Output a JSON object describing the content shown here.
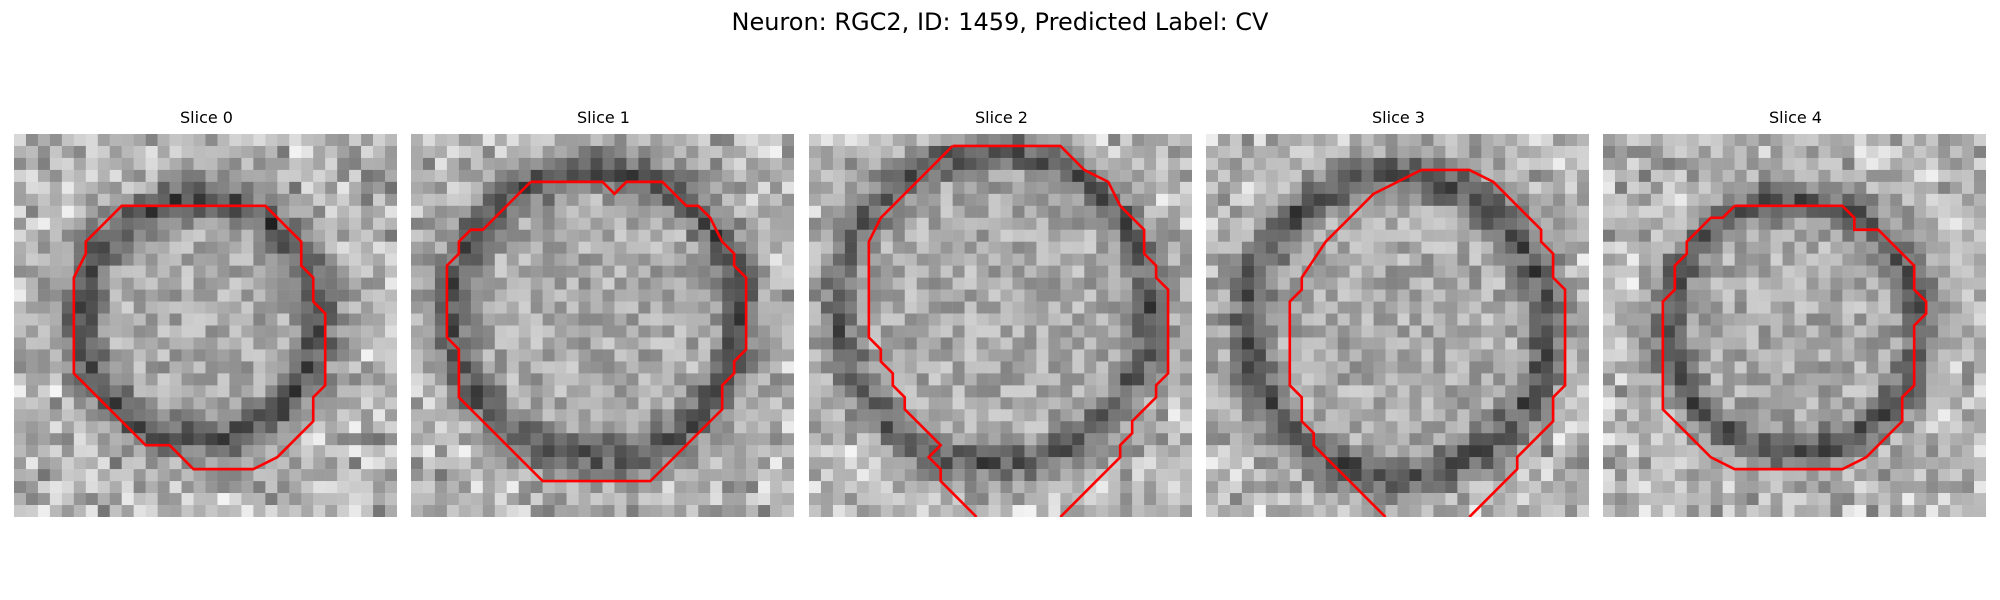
{
  "figure": {
    "title": "Neuron: RGC2, ID: 1459, Predicted Label: CV"
  },
  "panels": [
    {
      "title": "Slice 0"
    },
    {
      "title": "Slice 1"
    },
    {
      "title": "Slice 2"
    },
    {
      "title": "Slice 3"
    },
    {
      "title": "Slice 4"
    }
  ],
  "colors": {
    "contour": "#ff0000"
  }
}
